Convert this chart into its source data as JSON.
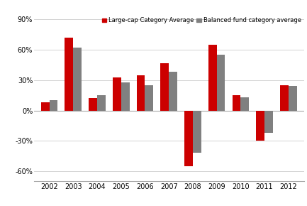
{
  "years": [
    2002,
    2003,
    2004,
    2005,
    2006,
    2007,
    2008,
    2009,
    2010,
    2011,
    2012
  ],
  "large_cap": [
    8,
    72,
    12,
    33,
    35,
    47,
    -55,
    65,
    15,
    -30,
    25
  ],
  "balanced": [
    10,
    62,
    15,
    28,
    25,
    38,
    -42,
    55,
    13,
    -22,
    24
  ],
  "large_cap_color": "#cc0000",
  "balanced_color": "#808080",
  "large_cap_label": "Large-cap Category Average",
  "balanced_label": "Balanced fund category average",
  "yticks": [
    -60,
    -30,
    0,
    30,
    60,
    90
  ],
  "ytick_labels": [
    "-60%",
    "-30%",
    "0%",
    "30%",
    "60%",
    "90%"
  ],
  "ylim": [
    -70,
    95
  ],
  "background_color": "#ffffff",
  "grid_color": "#cccccc",
  "bar_width": 0.35
}
